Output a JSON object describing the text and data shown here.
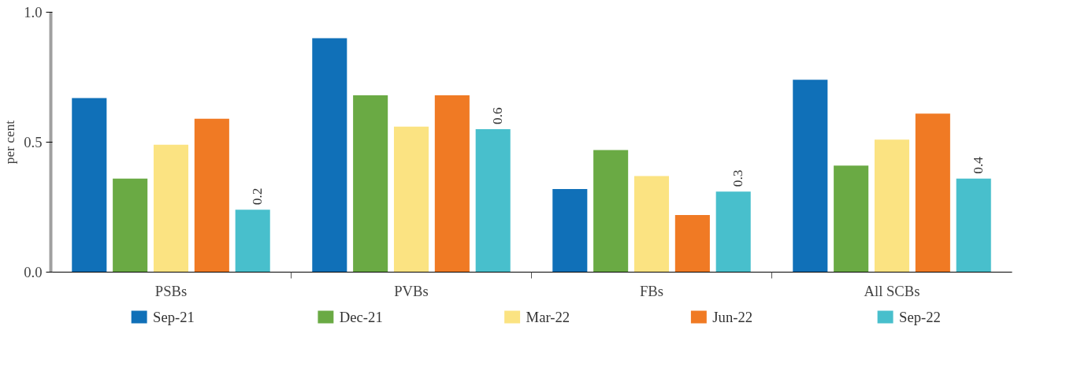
{
  "chart_data": {
    "type": "bar",
    "ylabel": "per cent",
    "categories": [
      "PSBs",
      "PVBs",
      "FBs",
      "All SCBs"
    ],
    "series": [
      {
        "name": "Sep-21",
        "color": "#1070b8",
        "values": [
          0.67,
          0.9,
          0.32,
          0.74
        ]
      },
      {
        "name": "Dec-21",
        "color": "#6aaa44",
        "values": [
          0.36,
          0.68,
          0.47,
          0.41
        ]
      },
      {
        "name": "Mar-22",
        "color": "#fbe382",
        "values": [
          0.49,
          0.56,
          0.37,
          0.51
        ]
      },
      {
        "name": "Jun-22",
        "color": "#f07a24",
        "values": [
          0.59,
          0.68,
          0.22,
          0.61
        ]
      },
      {
        "name": "Sep-22",
        "color": "#48bfcc",
        "values": [
          0.24,
          0.55,
          0.31,
          0.36
        ],
        "value_labels": [
          "0.2",
          "0.6",
          "0.3",
          "0.4"
        ]
      }
    ],
    "ylim": [
      0,
      1.0
    ],
    "yticks": [
      {
        "value": 0,
        "label": "0.0"
      },
      {
        "value": 0.5,
        "label": "0.5"
      },
      {
        "value": 1.0,
        "label": "1.0"
      }
    ],
    "grid": false,
    "legend": "bottom"
  }
}
